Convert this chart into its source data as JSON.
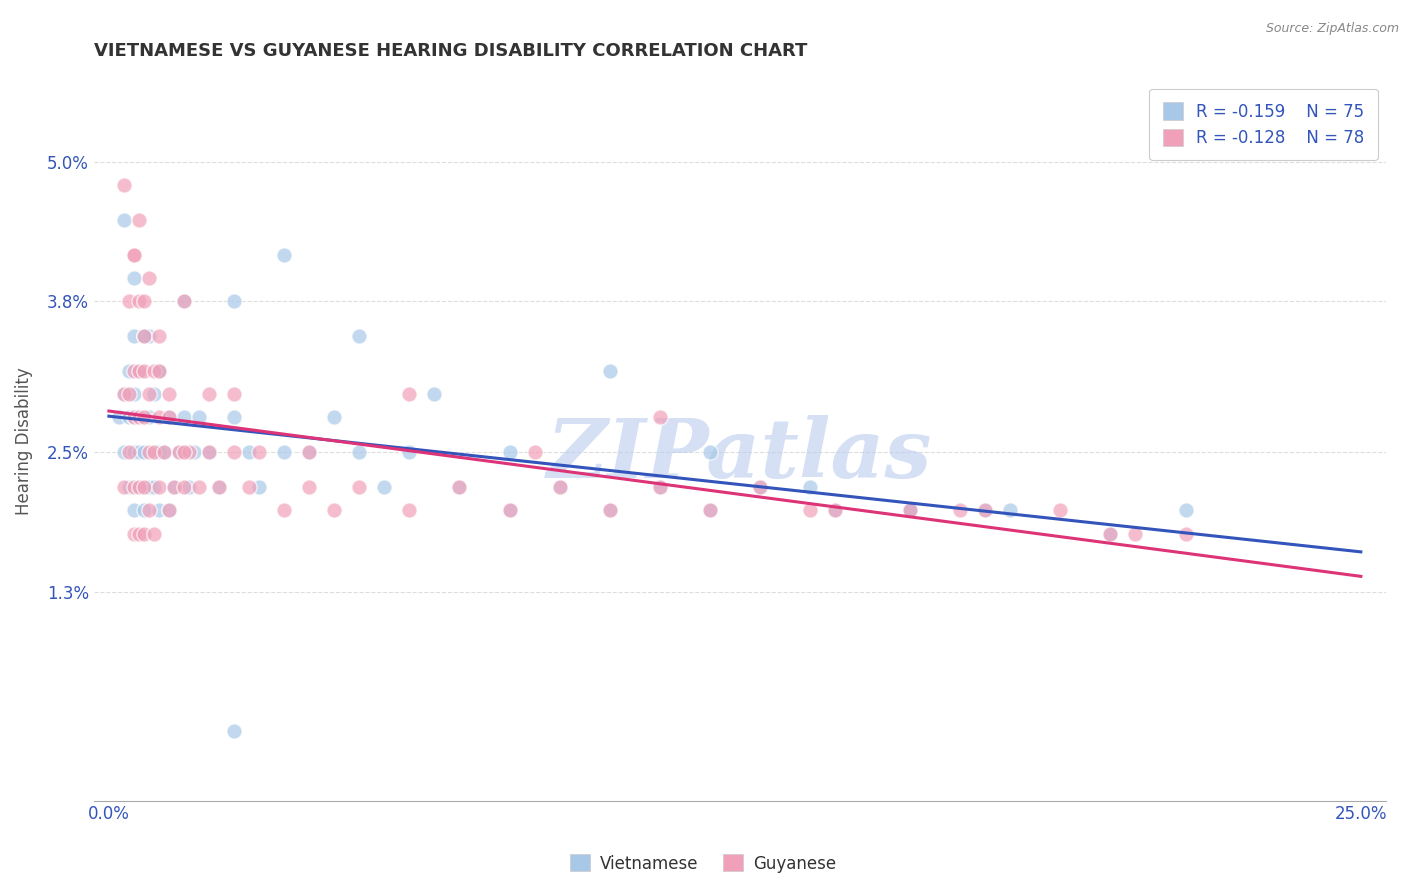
{
  "title": "VIETNAMESE VS GUYANESE HEARING DISABILITY CORRELATION CHART",
  "source": "Source: ZipAtlas.com",
  "ylabel": "Hearing Disability",
  "xlim": [
    -0.003,
    0.255
  ],
  "ylim": [
    -0.005,
    0.057
  ],
  "xticks": [
    0.0,
    0.25
  ],
  "xticklabels": [
    "0.0%",
    "25.0%"
  ],
  "yticks": [
    0.013,
    0.025,
    0.038,
    0.05
  ],
  "yticklabels": [
    "1.3%",
    "2.5%",
    "3.8%",
    "5.0%"
  ],
  "vietnamese_color": "#A8C8E8",
  "guyanese_color": "#F0A0B8",
  "trend_blue": "#3355BB",
  "trend_pink": "#DD3377",
  "legend_r1": "R = -0.159",
  "legend_n1": "N = 75",
  "legend_r2": "R = -0.128",
  "legend_n2": "N = 78",
  "watermark": "ZIPatlas",
  "watermark_color": "#BBCCEE",
  "background_color": "#FFFFFF",
  "grid_color": "#DDDDDD",
  "tick_color": "#3355BB",
  "title_color": "#333333",
  "dot_size": 120,
  "dot_alpha": 0.7,
  "vietnamese_x": [
    0.002,
    0.003,
    0.003,
    0.004,
    0.004,
    0.004,
    0.005,
    0.005,
    0.005,
    0.005,
    0.005,
    0.006,
    0.006,
    0.006,
    0.006,
    0.007,
    0.007,
    0.007,
    0.007,
    0.008,
    0.008,
    0.008,
    0.009,
    0.009,
    0.01,
    0.01,
    0.01,
    0.011,
    0.012,
    0.012,
    0.013,
    0.014,
    0.015,
    0.016,
    0.017,
    0.018,
    0.02,
    0.022,
    0.025,
    0.028,
    0.03,
    0.035,
    0.04,
    0.045,
    0.05,
    0.055,
    0.06,
    0.07,
    0.08,
    0.09,
    0.1,
    0.11,
    0.12,
    0.13,
    0.145,
    0.16,
    0.175,
    0.025,
    0.035,
    0.05,
    0.065,
    0.08,
    0.1,
    0.12,
    0.14,
    0.16,
    0.18,
    0.2,
    0.215,
    0.003,
    0.005,
    0.007,
    0.01,
    0.015,
    0.025
  ],
  "vietnamese_y": [
    0.028,
    0.025,
    0.03,
    0.022,
    0.028,
    0.032,
    0.02,
    0.025,
    0.028,
    0.03,
    0.035,
    0.022,
    0.025,
    0.028,
    0.032,
    0.02,
    0.025,
    0.028,
    0.035,
    0.022,
    0.028,
    0.035,
    0.022,
    0.03,
    0.02,
    0.025,
    0.032,
    0.025,
    0.02,
    0.028,
    0.022,
    0.025,
    0.028,
    0.022,
    0.025,
    0.028,
    0.025,
    0.022,
    0.028,
    0.025,
    0.022,
    0.025,
    0.025,
    0.028,
    0.025,
    0.022,
    0.025,
    0.022,
    0.02,
    0.022,
    0.02,
    0.022,
    0.02,
    0.022,
    0.02,
    0.02,
    0.02,
    0.038,
    0.042,
    0.035,
    0.03,
    0.025,
    0.032,
    0.025,
    0.022,
    0.02,
    0.02,
    0.018,
    0.02,
    0.045,
    0.04,
    0.035,
    0.032,
    0.038,
    0.001
  ],
  "guyanese_x": [
    0.003,
    0.003,
    0.004,
    0.004,
    0.004,
    0.005,
    0.005,
    0.005,
    0.005,
    0.005,
    0.006,
    0.006,
    0.006,
    0.006,
    0.006,
    0.007,
    0.007,
    0.007,
    0.007,
    0.007,
    0.008,
    0.008,
    0.008,
    0.009,
    0.009,
    0.009,
    0.01,
    0.01,
    0.011,
    0.012,
    0.012,
    0.013,
    0.014,
    0.015,
    0.016,
    0.018,
    0.02,
    0.022,
    0.025,
    0.028,
    0.03,
    0.035,
    0.04,
    0.045,
    0.05,
    0.06,
    0.07,
    0.08,
    0.09,
    0.1,
    0.11,
    0.12,
    0.13,
    0.145,
    0.16,
    0.175,
    0.19,
    0.205,
    0.215,
    0.003,
    0.005,
    0.007,
    0.01,
    0.015,
    0.025,
    0.04,
    0.06,
    0.085,
    0.11,
    0.14,
    0.17,
    0.2,
    0.006,
    0.008,
    0.01,
    0.012,
    0.015,
    0.02
  ],
  "guyanese_y": [
    0.022,
    0.03,
    0.025,
    0.03,
    0.038,
    0.018,
    0.022,
    0.028,
    0.032,
    0.042,
    0.018,
    0.022,
    0.028,
    0.032,
    0.038,
    0.018,
    0.022,
    0.028,
    0.032,
    0.038,
    0.02,
    0.025,
    0.03,
    0.018,
    0.025,
    0.032,
    0.022,
    0.028,
    0.025,
    0.02,
    0.028,
    0.022,
    0.025,
    0.022,
    0.025,
    0.022,
    0.025,
    0.022,
    0.025,
    0.022,
    0.025,
    0.02,
    0.022,
    0.02,
    0.022,
    0.02,
    0.022,
    0.02,
    0.022,
    0.02,
    0.022,
    0.02,
    0.022,
    0.02,
    0.02,
    0.02,
    0.02,
    0.018,
    0.018,
    0.048,
    0.042,
    0.035,
    0.032,
    0.038,
    0.03,
    0.025,
    0.03,
    0.025,
    0.028,
    0.02,
    0.02,
    0.018,
    0.045,
    0.04,
    0.035,
    0.03,
    0.025,
    0.03
  ]
}
